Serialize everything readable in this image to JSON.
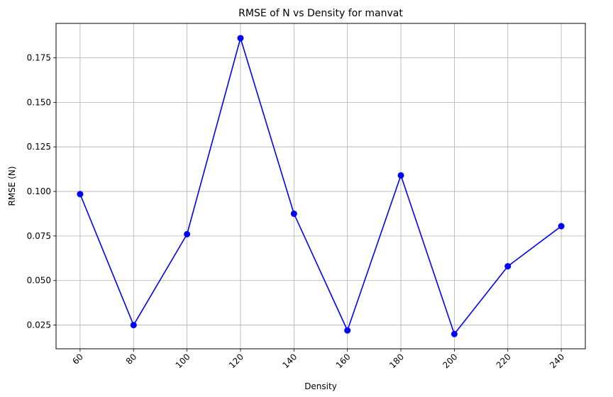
{
  "chart_data": {
    "type": "line",
    "title": "RMSE of N vs Density for manvat",
    "xlabel": "Density",
    "ylabel": "RMSE (N)",
    "x": [
      60,
      80,
      100,
      120,
      140,
      160,
      180,
      200,
      220,
      240
    ],
    "x_tick_labels": [
      "60",
      "80",
      "100",
      "120",
      "140",
      "160",
      "180",
      "200",
      "220",
      "240"
    ],
    "y_ticks": [
      0.025,
      0.05,
      0.075,
      0.1,
      0.125,
      0.15,
      0.175
    ],
    "y_tick_labels": [
      "0.025",
      "0.050",
      "0.075",
      "0.100",
      "0.125",
      "0.150",
      "0.175"
    ],
    "xlim": [
      51,
      249
    ],
    "ylim": [
      0.0117,
      0.1943
    ],
    "grid": true,
    "x_tick_rotation": 45,
    "series": [
      {
        "values": [
          0.0985,
          0.025,
          0.076,
          0.186,
          0.0875,
          0.022,
          0.109,
          0.02,
          0.058,
          0.0805
        ],
        "color": "#0000ff",
        "marker": "circle"
      }
    ]
  }
}
